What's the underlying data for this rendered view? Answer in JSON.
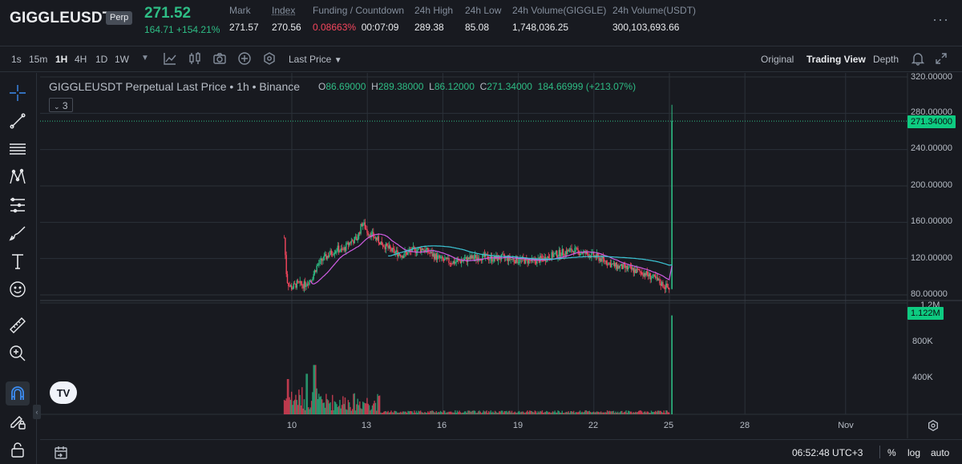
{
  "header": {
    "symbol": "GIGGLEUSDT",
    "badge": "Perp",
    "last_price": "271.52",
    "change": "164.71 +154.21%",
    "stats": [
      {
        "label": "Mark",
        "value": "271.57",
        "underline": false
      },
      {
        "label": "Index",
        "value": "270.56",
        "underline": true
      },
      {
        "label": "Funding / Countdown",
        "value": "0.08663%",
        "value2": "00:07:09",
        "underline": false
      },
      {
        "label": "24h High",
        "value": "289.38",
        "underline": false
      },
      {
        "label": "24h Low",
        "value": "85.08",
        "underline": false
      },
      {
        "label": "24h Volume(GIGGLE)",
        "value": "1,748,036.25",
        "underline": false
      },
      {
        "label": "24h Volume(USDT)",
        "value": "300,103,693.66",
        "underline": false
      }
    ]
  },
  "toolbar": {
    "timeframes": [
      "1s",
      "15m",
      "1H",
      "4H",
      "1D",
      "1W"
    ],
    "active_timeframe": "1H",
    "price_type": "Last Price",
    "views": [
      "Original",
      "Trading View",
      "Depth"
    ],
    "active_view": "Trading View"
  },
  "left_tools": [
    "crosshair-icon",
    "trend-line-icon",
    "horizontal-lines-icon",
    "pattern-icon",
    "fib-icon",
    "brush-icon",
    "text-icon",
    "emoji-icon",
    "ruler-icon",
    "zoom-in-icon",
    "magnet-icon",
    "pencil-lock-icon",
    "lock-icon"
  ],
  "chart": {
    "title": "GIGGLEUSDT Perpetual Last Price • 1h • Binance",
    "ohlc": {
      "o_label": "O",
      "o": "86.69000",
      "h_label": "H",
      "h": "289.38000",
      "l_label": "L",
      "l": "86.12000",
      "c_label": "C",
      "c": "271.34000",
      "change": "184.66999 (+213.07%)"
    },
    "indicator_count": "3",
    "price_axis": [
      "320.00000",
      "280.00000",
      "240.00000",
      "200.00000",
      "160.00000",
      "120.00000",
      "80.00000"
    ],
    "current_price_tag": "271.34000",
    "volume_axis": [
      "1.2M",
      "800K",
      "400K"
    ],
    "current_volume_tag": "1.122M",
    "x_labels": [
      "10",
      "13",
      "16",
      "19",
      "22",
      "25",
      "28",
      "Nov"
    ],
    "logo_text": "TV",
    "colors": {
      "up": "#2ebd85",
      "down": "#f6465d",
      "ma_fast": "#d05ce3",
      "ma_slow": "#3cc6d6"
    }
  },
  "chart_data": {
    "type": "candlestick",
    "y_range": [
      80,
      320
    ],
    "volume_range": [
      0,
      1200000
    ],
    "x_tick_labels": [
      "10",
      "13",
      "16",
      "19",
      "22",
      "25",
      "28",
      "Nov"
    ],
    "close_path": [
      [
        9.7,
        143
      ],
      [
        9.8,
        97
      ],
      [
        9.9,
        90
      ],
      [
        10.0,
        88
      ],
      [
        10.2,
        92
      ],
      [
        10.5,
        91
      ],
      [
        10.8,
        99
      ],
      [
        11.0,
        112
      ],
      [
        11.2,
        118
      ],
      [
        11.5,
        125
      ],
      [
        11.8,
        131
      ],
      [
        12.0,
        128
      ],
      [
        12.3,
        138
      ],
      [
        12.6,
        142
      ],
      [
        12.8,
        160
      ],
      [
        13.0,
        150
      ],
      [
        13.3,
        143
      ],
      [
        13.6,
        136
      ],
      [
        14.0,
        128
      ],
      [
        14.4,
        124
      ],
      [
        14.8,
        129
      ],
      [
        15.2,
        131
      ],
      [
        15.6,
        124
      ],
      [
        16.0,
        118
      ],
      [
        16.4,
        116
      ],
      [
        16.8,
        118
      ],
      [
        17.2,
        121
      ],
      [
        17.6,
        122
      ],
      [
        18.0,
        120
      ],
      [
        18.4,
        121
      ],
      [
        18.8,
        119
      ],
      [
        19.2,
        118
      ],
      [
        19.6,
        117
      ],
      [
        20.0,
        120
      ],
      [
        20.4,
        124
      ],
      [
        20.8,
        127
      ],
      [
        21.2,
        129
      ],
      [
        21.6,
        126
      ],
      [
        22.0,
        123
      ],
      [
        22.4,
        118
      ],
      [
        22.8,
        112
      ],
      [
        23.2,
        110
      ],
      [
        23.6,
        107
      ],
      [
        24.0,
        104
      ],
      [
        24.4,
        98
      ],
      [
        24.8,
        90
      ],
      [
        25.0,
        87
      ],
      [
        25.1,
        271.34
      ]
    ],
    "last_candle": {
      "open": 86.69,
      "high": 289.38,
      "low": 86.12,
      "close": 271.34
    },
    "last_volume": 1122000
  },
  "status": {
    "time": "06:52:48 UTC+3",
    "pct": "%",
    "log": "log",
    "auto": "auto"
  }
}
